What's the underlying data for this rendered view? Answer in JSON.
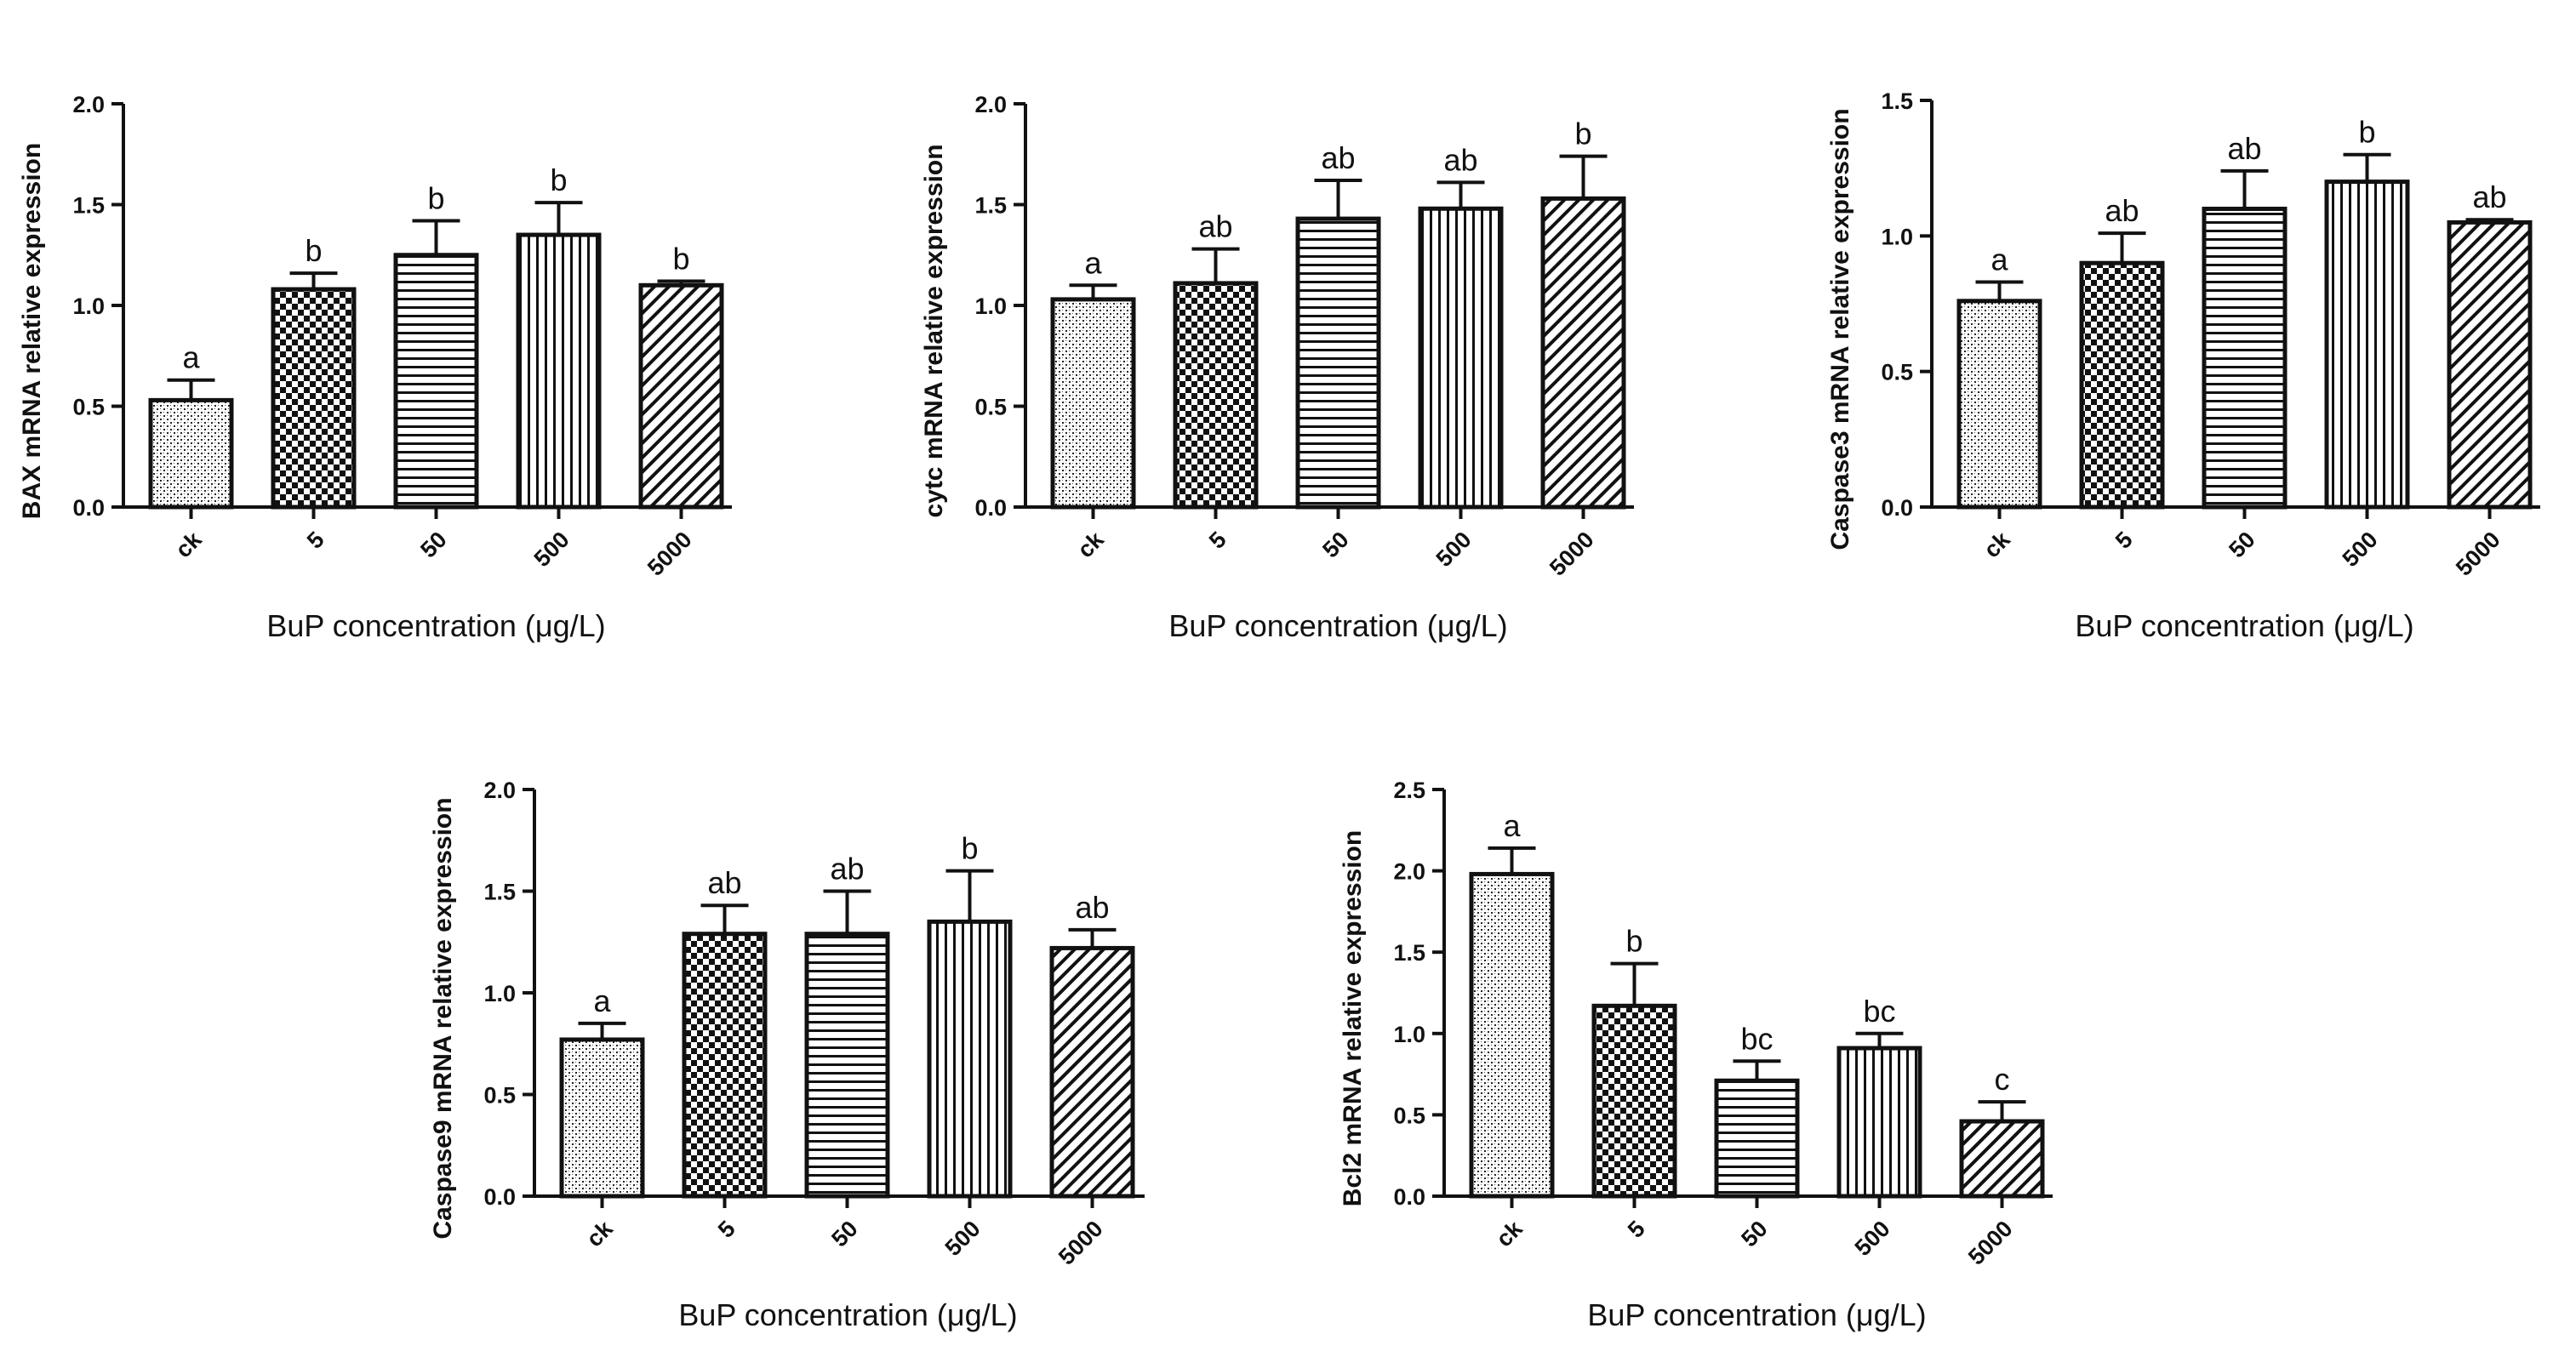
{
  "chart_data": [
    {
      "type": "bar",
      "categories": [
        "ck",
        "5",
        "50",
        "500",
        "5000"
      ],
      "values": [
        0.53,
        1.08,
        1.25,
        1.35,
        1.1
      ],
      "errors": [
        0.1,
        0.08,
        0.17,
        0.16,
        0.02
      ],
      "significance": [
        "a",
        "b",
        "b",
        "b",
        "b"
      ],
      "xlabel": "BuP concentration (μg/L)",
      "ylabel": "BAX mRNA relative expression",
      "ylim": [
        0,
        2.0
      ],
      "yticks": [
        "0.0",
        "0.5",
        "1.0",
        "1.5",
        "2.0"
      ],
      "grid": false
    },
    {
      "type": "bar",
      "categories": [
        "ck",
        "5",
        "50",
        "500",
        "5000"
      ],
      "values": [
        1.03,
        1.11,
        1.43,
        1.48,
        1.53
      ],
      "errors": [
        0.07,
        0.17,
        0.19,
        0.13,
        0.21
      ],
      "significance": [
        "a",
        "ab",
        "ab",
        "ab",
        "b"
      ],
      "xlabel": "BuP concentration (μg/L)",
      "ylabel": "cytc mRNA relative expression",
      "ylim": [
        0,
        2.0
      ],
      "yticks": [
        "0.0",
        "0.5",
        "1.0",
        "1.5",
        "2.0"
      ],
      "grid": false
    },
    {
      "type": "bar",
      "categories": [
        "ck",
        "5",
        "50",
        "500",
        "5000"
      ],
      "values": [
        0.76,
        0.9,
        1.1,
        1.2,
        1.05
      ],
      "errors": [
        0.07,
        0.11,
        0.14,
        0.1,
        0.01
      ],
      "significance": [
        "a",
        "ab",
        "ab",
        "b",
        "ab"
      ],
      "xlabel": "BuP concentration (μg/L)",
      "ylabel": "Caspase3 mRNA relative expression",
      "ylim": [
        0,
        1.5
      ],
      "yticks": [
        "0.0",
        "0.5",
        "1.0",
        "1.5"
      ],
      "grid": false
    },
    {
      "type": "bar",
      "categories": [
        "ck",
        "5",
        "50",
        "500",
        "5000"
      ],
      "values": [
        0.77,
        1.29,
        1.29,
        1.35,
        1.22
      ],
      "errors": [
        0.08,
        0.14,
        0.21,
        0.25,
        0.09
      ],
      "significance": [
        "a",
        "ab",
        "ab",
        "b",
        "ab"
      ],
      "xlabel": "BuP concentration (μg/L)",
      "ylabel": "Caspase9 mRNA relative expression",
      "ylim": [
        0,
        2.0
      ],
      "yticks": [
        "0.0",
        "0.5",
        "1.0",
        "1.5",
        "2.0"
      ],
      "grid": false
    },
    {
      "type": "bar",
      "categories": [
        "ck",
        "5",
        "50",
        "500",
        "5000"
      ],
      "values": [
        1.98,
        1.17,
        0.71,
        0.91,
        0.46
      ],
      "errors": [
        0.16,
        0.26,
        0.12,
        0.09,
        0.12
      ],
      "significance": [
        "a",
        "b",
        "bc",
        "bc",
        "c"
      ],
      "xlabel": "BuP concentration (μg/L)",
      "ylabel": "Bcl2 mRNA relative expression",
      "ylim": [
        0,
        2.5
      ],
      "yticks": [
        "0.0",
        "0.5",
        "1.0",
        "1.5",
        "2.0",
        "2.5"
      ],
      "grid": false
    }
  ]
}
